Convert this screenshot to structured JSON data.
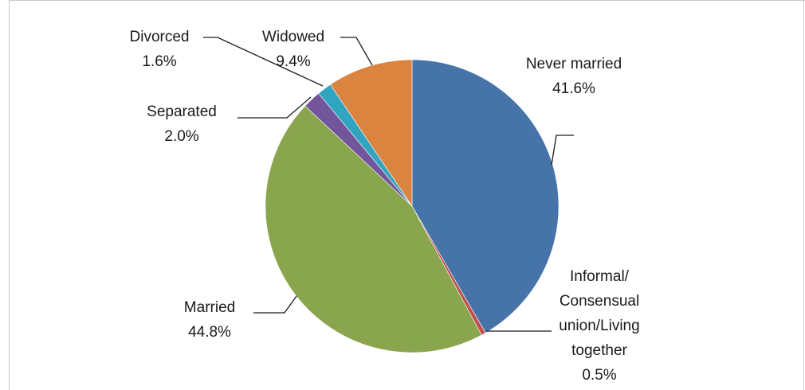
{
  "chart_data": {
    "type": "pie",
    "title": "",
    "start_angle_deg": 0,
    "direction": "clockwise",
    "slices": [
      {
        "label": "Never married",
        "value": 41.6,
        "display": "41.6%",
        "color": "#4674a8"
      },
      {
        "label": "Informal/ Consensual union/Living together",
        "label_lines": [
          "Informal/",
          "Consensual",
          "union/Living",
          "together"
        ],
        "value": 0.5,
        "display": "0.5%",
        "color": "#c0504d"
      },
      {
        "label": "Married",
        "value": 44.8,
        "display": "44.8%",
        "color": "#89a64e"
      },
      {
        "label": "Separated",
        "value": 2.0,
        "display": "2.0%",
        "color": "#72559a"
      },
      {
        "label": "Divorced",
        "value": 1.6,
        "display": "1.6%",
        "color": "#31a4c0"
      },
      {
        "label": "Widowed",
        "value": 9.4,
        "display": "9.4%",
        "color": "#db8440"
      }
    ]
  }
}
